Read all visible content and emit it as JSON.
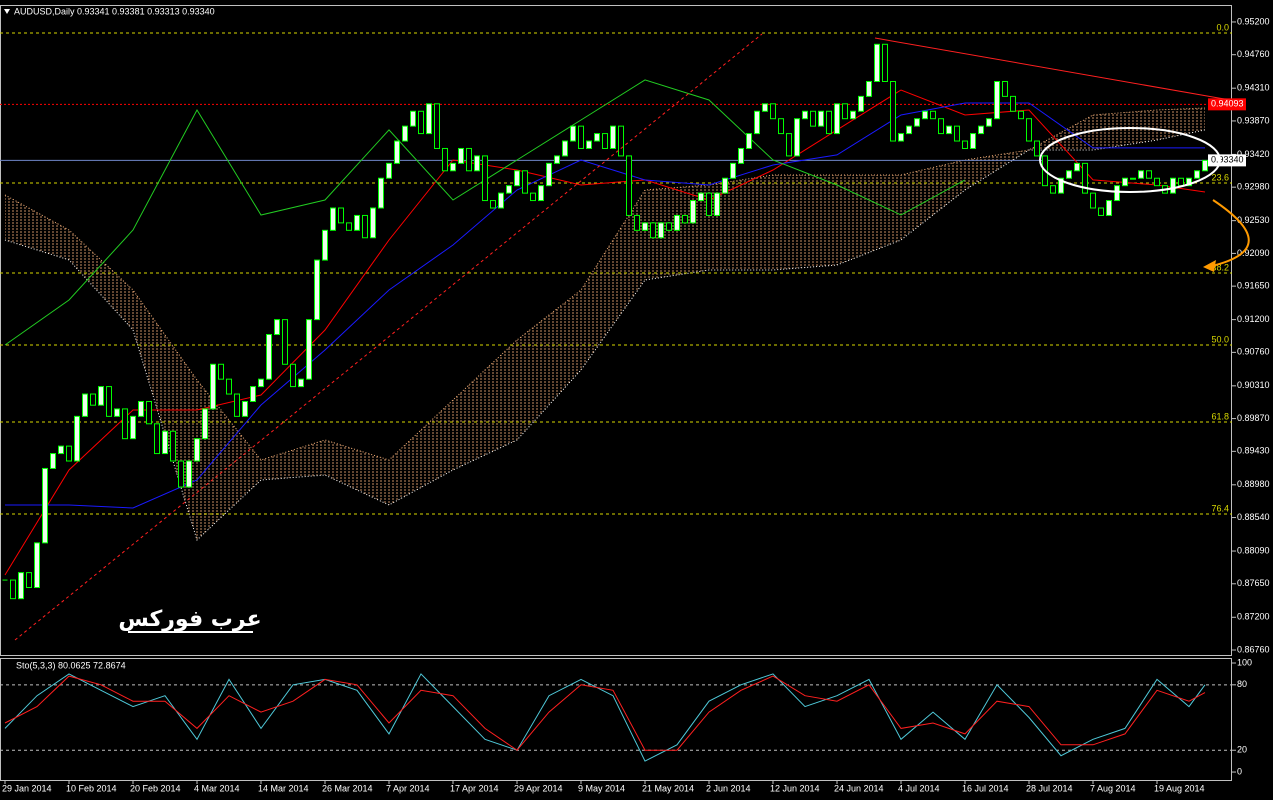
{
  "chart_data": [
    {
      "type": "candlestick",
      "title": "AUDUSD,Daily  0.93341 0.93381 0.93313 0.93340",
      "categories": [
        "29 Jan 2014",
        null,
        null,
        null,
        null,
        null,
        null,
        null,
        "10 Feb 2014",
        null,
        null,
        null,
        null,
        null,
        null,
        null,
        "20 Feb 2014",
        null,
        null,
        null,
        null,
        null,
        null,
        null,
        "4 Mar 2014",
        null,
        null,
        null,
        null,
        null,
        null,
        null,
        "14 Mar 2014",
        null,
        null,
        null,
        null,
        null,
        null,
        null,
        "26 Mar 2014",
        null,
        null,
        null,
        null,
        null,
        null,
        null,
        "7 Apr 2014",
        null,
        null,
        null,
        null,
        null,
        null,
        null,
        "17 Apr 2014",
        null,
        null,
        null,
        null,
        null,
        null,
        null,
        "29 Apr 2014",
        null,
        null,
        null,
        null,
        null,
        null,
        null,
        "9 May 2014",
        null,
        null,
        null,
        null,
        null,
        null,
        null,
        "21 May 2014",
        null,
        null,
        null,
        null,
        null,
        null,
        null,
        "2 Jun 2014",
        null,
        null,
        null,
        null,
        null,
        null,
        null,
        "12 Jun 2014",
        null,
        null,
        null,
        null,
        null,
        null,
        null,
        "24 Jun 2014",
        null,
        null,
        null,
        null,
        null,
        null,
        null,
        "4 Jul 2014",
        null,
        null,
        null,
        null,
        null,
        null,
        null,
        "16 Jul 2014",
        null,
        null,
        null,
        null,
        null,
        null,
        null,
        "28 Jul 2014",
        null,
        null,
        null,
        null,
        null,
        null,
        null,
        "7 Aug 2014",
        null,
        null,
        null,
        null,
        null,
        null,
        null,
        "19 Aug 2014",
        null,
        null,
        null,
        null,
        null,
        null
      ],
      "values": [
        0.877,
        0.8745,
        0.878,
        0.876,
        0.882,
        0.892,
        0.894,
        0.895,
        0.893,
        0.899,
        0.902,
        0.9005,
        0.903,
        0.899,
        0.9,
        0.896,
        0.899,
        0.901,
        0.898,
        0.894,
        0.897,
        0.893,
        0.8895,
        0.893,
        0.896,
        0.9,
        0.906,
        0.904,
        0.902,
        0.899,
        0.901,
        0.903,
        0.904,
        0.91,
        0.912,
        0.906,
        0.903,
        0.904,
        0.912,
        0.92,
        0.924,
        0.927,
        0.925,
        0.924,
        0.926,
        0.923,
        0.927,
        0.931,
        0.933,
        0.936,
        0.938,
        0.94,
        0.937,
        0.941,
        0.935,
        0.932,
        0.933,
        0.935,
        0.932,
        0.934,
        0.928,
        0.927,
        0.929,
        0.93,
        0.932,
        0.929,
        0.928,
        0.93,
        0.933,
        0.934,
        0.936,
        0.938,
        0.935,
        0.936,
        0.937,
        0.935,
        0.938,
        0.934,
        0.926,
        0.924,
        0.925,
        0.923,
        0.925,
        0.924,
        0.926,
        0.925,
        0.928,
        0.929,
        0.926,
        0.929,
        0.931,
        0.933,
        0.935,
        0.937,
        0.94,
        0.941,
        0.939,
        0.937,
        0.934,
        0.939,
        0.94,
        0.938,
        0.94,
        0.937,
        0.941,
        0.939,
        0.94,
        0.942,
        0.944,
        0.949,
        0.944,
        0.936,
        0.937,
        0.938,
        0.939,
        0.94,
        0.939,
        0.937,
        0.938,
        0.936,
        0.935,
        0.937,
        0.938,
        0.939,
        0.944,
        0.942,
        0.94,
        0.939,
        0.936,
        0.934,
        0.93,
        0.929,
        0.931,
        0.932,
        0.933,
        0.929,
        0.927,
        0.926,
        0.928,
        0.93,
        0.931,
        0.931,
        0.932,
        0.931,
        0.93,
        0.929,
        0.931,
        0.93,
        0.931,
        0.932,
        0.9334
      ],
      "color": "#00ff00",
      "ylim": [
        0.86693,
        0.95428
      ],
      "yticks": [
        {
          "value": 0.952,
          "label": "0.95200"
        },
        {
          "value": 0.9476,
          "label": "0.94760"
        },
        {
          "value": 0.9431,
          "label": "0.94310"
        },
        {
          "value": 0.9387,
          "label": "0.93870"
        },
        {
          "value": 0.9342,
          "label": "0.93420"
        },
        {
          "value": 0.9298,
          "label": "0.92980"
        },
        {
          "value": 0.9253,
          "label": "0.92530"
        },
        {
          "value": 0.9209,
          "label": "0.92090"
        },
        {
          "value": 0.9165,
          "label": "0.91650"
        },
        {
          "value": 0.912,
          "label": "0.91200"
        },
        {
          "value": 0.9076,
          "label": "0.90760"
        },
        {
          "value": 0.9031,
          "label": "0.90310"
        },
        {
          "value": 0.8987,
          "label": "0.89870"
        },
        {
          "value": 0.8943,
          "label": "0.89430"
        },
        {
          "value": 0.8898,
          "label": "0.88980"
        },
        {
          "value": 0.8854,
          "label": "0.88540"
        },
        {
          "value": 0.8809,
          "label": "0.88090"
        },
        {
          "value": 0.8765,
          "label": "0.87650"
        },
        {
          "value": 0.872,
          "label": "0.87200"
        },
        {
          "value": 0.8676,
          "label": "0.86760"
        }
      ],
      "lines": [
        {
          "color": "#ff0000",
          "x": [
            0,
            8,
            16,
            24,
            32,
            40,
            48,
            56,
            64,
            72,
            80,
            88,
            96,
            104,
            112,
            120,
            128,
            136,
            144,
            150
          ],
          "values": [
            0.87768,
            0.89179,
            0.89986,
            0.89986,
            0.90187,
            0.91061,
            0.9227,
            0.93345,
            0.93211,
            0.93009,
            0.93077,
            0.92808,
            0.93211,
            0.93749,
            0.94286,
            0.9395,
            0.94017,
            0.93077,
            0.93009,
            0.92915
          ]
        },
        {
          "color": "#1a1aff",
          "x": [
            0,
            8,
            16,
            24,
            32,
            40,
            48,
            56,
            64,
            72,
            80,
            88,
            96,
            104,
            112,
            120,
            128,
            136,
            144,
            150
          ],
          "values": [
            0.88709,
            0.88709,
            0.88669,
            0.89045,
            0.90053,
            0.90792,
            0.91598,
            0.92203,
            0.92942,
            0.93345,
            0.93076,
            0.93009,
            0.93278,
            0.93413,
            0.9395,
            0.94111,
            0.94111,
            0.93507,
            0.93507,
            0.93507
          ]
        },
        {
          "color": "#22cc22",
          "x": [
            0,
            8,
            16,
            24,
            32,
            40,
            48,
            56,
            64,
            72,
            80,
            88,
            96,
            104,
            112,
            120,
            128,
            136,
            144,
            150
          ],
          "values": [
            0.90859,
            0.91464,
            0.92405,
            0.94017,
            0.92606,
            0.92808,
            0.93749,
            0.92808,
            0.93345,
            0.93883,
            0.94421,
            0.94152,
            0.93345,
            0.93009,
            0.92606,
            0.93077,
            null,
            null,
            null,
            null
          ]
        }
      ],
      "cloud": {
        "color": "#f4b07a",
        "x": [
          0,
          8,
          16,
          24,
          32,
          40,
          48,
          56,
          64,
          72,
          80,
          88,
          96,
          104,
          112,
          120,
          128,
          136,
          144,
          150
        ],
        "span_a": [
          0.92875,
          0.92405,
          0.91598,
          0.90389,
          0.89314,
          0.89582,
          0.89314,
          0.9012,
          0.90926,
          0.91598,
          0.92942,
          0.93009,
          0.93144,
          0.93144,
          0.93144,
          0.93345,
          0.9348,
          0.9395,
          0.94017,
          0.94044
        ],
        "span_b": [
          0.9227,
          0.92002,
          0.91061,
          0.88239,
          0.89045,
          0.89112,
          0.88709,
          0.89179,
          0.89582,
          0.90523,
          0.91733,
          0.91867,
          0.91867,
          0.91934,
          0.9227,
          0.92942,
          0.9348,
          0.9348,
          0.93614,
          0.93749
        ]
      },
      "fib_levels": [
        {
          "value": 0.95052,
          "label": "0.0"
        },
        {
          "value": 0.93036,
          "label": "23.6"
        },
        {
          "value": 0.91827,
          "label": "38.2"
        },
        {
          "value": 0.90859,
          "label": "50.0"
        },
        {
          "value": 0.89824,
          "label": "61.8"
        },
        {
          "value": 0.88588,
          "label": "76.4"
        }
      ],
      "fib_color": "#d8d800",
      "hlines": [
        {
          "value": 0.94093,
          "label": "0.94093",
          "color": "#ff0000",
          "box": "#ff0000",
          "text": "#ffffff"
        },
        {
          "value": 0.9334,
          "label": "0.93340",
          "color": "#6f86c8",
          "box": "#ffffff",
          "text": "#000000"
        }
      ],
      "annotation": "عرب فوركس"
    },
    {
      "type": "line",
      "title": "Sto(5,3,3) 80.0625 72.8674",
      "x": [
        0,
        4,
        8,
        12,
        16,
        20,
        24,
        28,
        32,
        36,
        40,
        44,
        48,
        52,
        56,
        60,
        64,
        68,
        72,
        76,
        80,
        84,
        88,
        92,
        96,
        100,
        104,
        108,
        112,
        116,
        120,
        124,
        128,
        132,
        136,
        140,
        144,
        148,
        150
      ],
      "series": [
        {
          "color": "#4fc8d8",
          "values": [
            40,
            70,
            90,
            75,
            60,
            70,
            30,
            85,
            40,
            80,
            85,
            75,
            35,
            90,
            60,
            30,
            20,
            70,
            85,
            70,
            10,
            25,
            65,
            80,
            90,
            60,
            70,
            85,
            30,
            55,
            30,
            80,
            50,
            15,
            30,
            40,
            85,
            60,
            80.0625
          ]
        },
        {
          "color": "#ff2020",
          "values": [
            45,
            60,
            88,
            80,
            65,
            65,
            40,
            70,
            55,
            65,
            85,
            80,
            45,
            75,
            70,
            40,
            20,
            55,
            80,
            75,
            20,
            20,
            55,
            75,
            88,
            70,
            65,
            80,
            40,
            45,
            35,
            65,
            60,
            25,
            25,
            35,
            75,
            65,
            72.8674
          ]
        }
      ],
      "ylim": [
        -7.3,
        104.6
      ],
      "yticks": [
        0,
        20,
        80,
        100
      ],
      "levels": [
        20,
        80
      ]
    }
  ]
}
